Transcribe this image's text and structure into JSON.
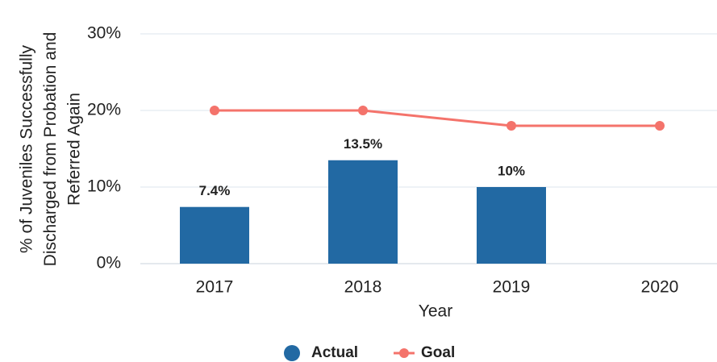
{
  "chart_data": {
    "type": "bar_line",
    "categories": [
      "2017",
      "2018",
      "2019",
      "2020"
    ],
    "series": [
      {
        "name": "Actual",
        "type": "bar",
        "color": "#2269a3",
        "values": [
          7.4,
          13.5,
          10,
          null
        ],
        "value_labels": [
          "7.4%",
          "13.5%",
          "10%",
          null
        ]
      },
      {
        "name": "Goal",
        "type": "line",
        "color": "#f4736b",
        "values": [
          20,
          20,
          18,
          18
        ]
      }
    ],
    "ylim": [
      0,
      30
    ],
    "yticks": [
      {
        "value": 0,
        "label": "0%"
      },
      {
        "value": 10,
        "label": "10%"
      },
      {
        "value": 20,
        "label": "20%"
      },
      {
        "value": 30,
        "label": "30%"
      }
    ],
    "xlabel": "Year",
    "ylabel": [
      "% of Juveniles Successfully",
      "Discharged from Probation and",
      "Referred Again"
    ],
    "grid": true,
    "legend": "bottom"
  }
}
